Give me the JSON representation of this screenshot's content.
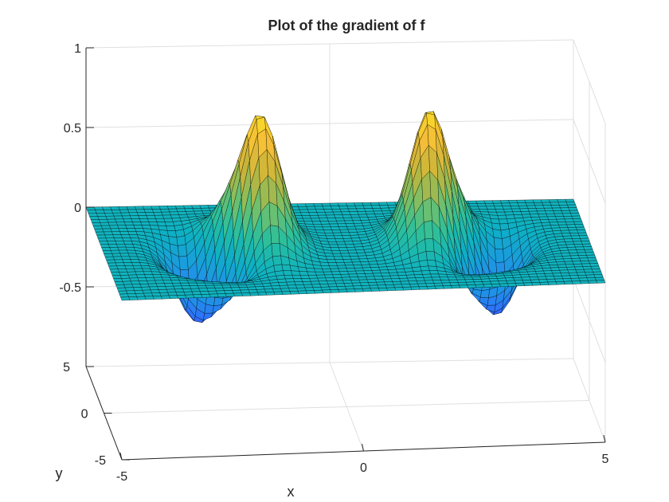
{
  "chart_data": {
    "type": "surface",
    "title": "Plot of the gradient of f",
    "xlabel": "x",
    "ylabel": "y",
    "zlabel": "",
    "xlim": [
      -5,
      5
    ],
    "ylim": [
      -5,
      5
    ],
    "zlim": [
      -1,
      1
    ],
    "xticks": [
      -5,
      0,
      5
    ],
    "yticks": [
      -5,
      0,
      5
    ],
    "zticks": [
      -0.5,
      0,
      0.5,
      1
    ],
    "xtick_labels": [
      "-5",
      "0",
      "5"
    ],
    "ytick_labels": [
      "-5",
      "0",
      "5"
    ],
    "ztick_labels": [
      "-0.5",
      "0",
      "0.5",
      "1"
    ],
    "grid": true,
    "colormap": "parula",
    "edge_color": "#000000",
    "peaks": [
      {
        "x": -3.0,
        "y": 0.2,
        "z": -0.62
      },
      {
        "x": -2.6,
        "y": 0.6,
        "z": 0.55
      },
      {
        "x": -1.8,
        "y": 0.3,
        "z": 0.97
      },
      {
        "x": -2.3,
        "y": -0.3,
        "z": -0.55
      },
      {
        "x": 1.8,
        "y": 0.3,
        "z": 0.97
      },
      {
        "x": 2.6,
        "y": 0.6,
        "z": 0.55
      },
      {
        "x": 2.3,
        "y": -0.3,
        "z": -0.55
      },
      {
        "x": 3.0,
        "y": 0.2,
        "z": -0.62
      }
    ]
  },
  "colors": {
    "parula": [
      "#3e26a8",
      "#4743f8",
      "#2d74fa",
      "#1d98e2",
      "#0db1c3",
      "#2bbf9c",
      "#7abf66",
      "#c4b43a",
      "#f4bd38",
      "#f9df24",
      "#f9fb0e"
    ],
    "axis": "#262626",
    "grid": "#dfdfdf"
  }
}
